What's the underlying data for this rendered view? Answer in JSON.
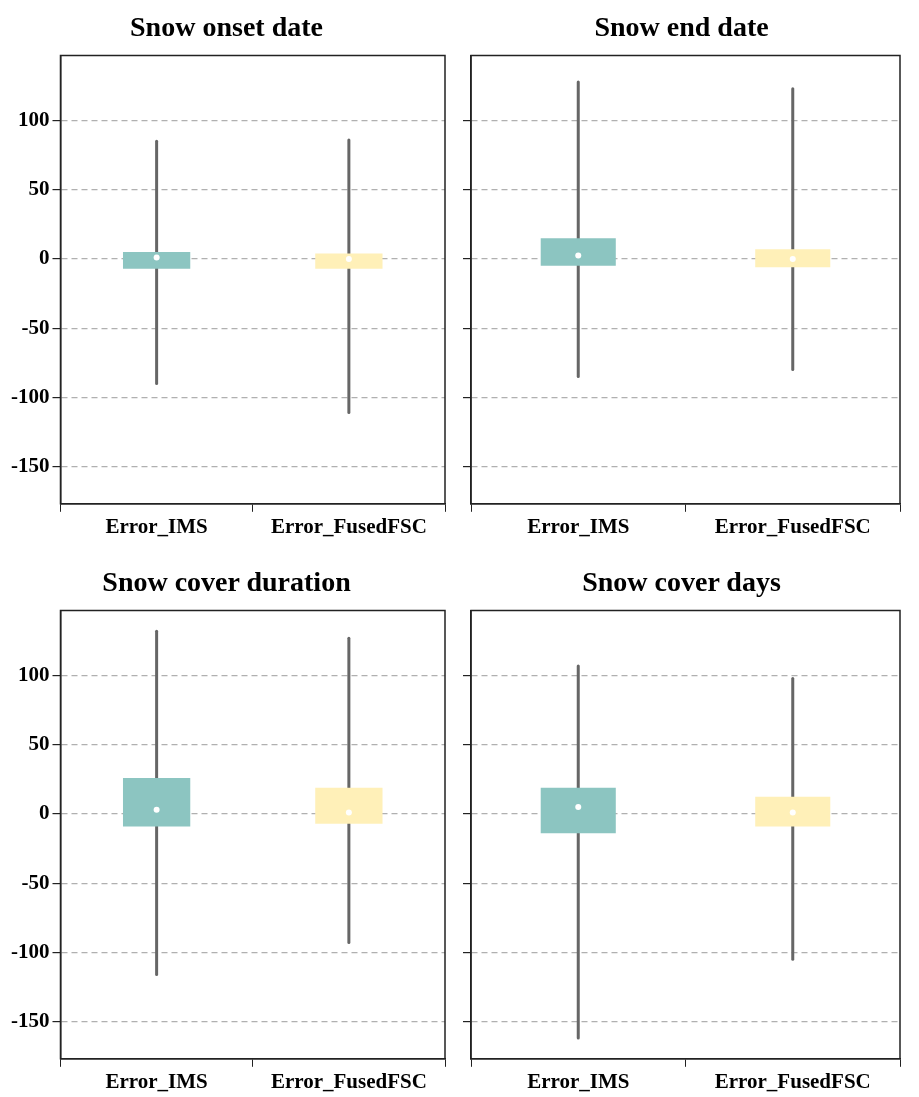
{
  "chart_data": [
    {
      "type": "box",
      "title": "Snow onset date",
      "categories": [
        "Error_IMS",
        "Error_FusedFSC"
      ],
      "colors": [
        "#8cc5c1",
        "#fff0b8"
      ],
      "boxes": [
        {
          "low": -90,
          "q1": -7,
          "median": 1,
          "q3": 5,
          "high": 85
        },
        {
          "low": -111,
          "q1": -7,
          "median": 0,
          "q3": 4,
          "high": 86
        }
      ],
      "ylim": [
        -177,
        147
      ],
      "yticks": [
        -150,
        -100,
        -50,
        0,
        50,
        100
      ],
      "grid": "y"
    },
    {
      "type": "box",
      "title": "Snow end date",
      "categories": [
        "Error_IMS",
        "Error_FusedFSC"
      ],
      "colors": [
        "#8cc5c1",
        "#fff0b8"
      ],
      "boxes": [
        {
          "low": -85,
          "q1": -5,
          "median": 2.5,
          "q3": 15,
          "high": 128
        },
        {
          "low": -80,
          "q1": -6,
          "median": 0,
          "q3": 7,
          "high": 123
        }
      ],
      "ylim": [
        -177,
        147
      ],
      "yticks": [
        -150,
        -100,
        -50,
        0,
        50,
        100
      ],
      "grid": "y",
      "tick_labels": "x"
    },
    {
      "type": "box",
      "title": "Snow cover duration",
      "categories": [
        "Error_IMS",
        "Error_FusedFSC"
      ],
      "colors": [
        "#8cc5c1",
        "#fff0b8"
      ],
      "boxes": [
        {
          "low": -116,
          "q1": -9,
          "median": 3,
          "q3": 26,
          "high": 132
        },
        {
          "low": -93,
          "q1": -7,
          "median": 1,
          "q3": 19,
          "high": 127
        }
      ],
      "ylim": [
        -177,
        147
      ],
      "yticks": [
        -150,
        -100,
        -50,
        0,
        50,
        100
      ],
      "grid": "y"
    },
    {
      "type": "box",
      "title": "Snow cover days",
      "categories": [
        "Error_IMS",
        "Error_FusedFSC"
      ],
      "colors": [
        "#8cc5c1",
        "#fff0b8"
      ],
      "boxes": [
        {
          "low": -162,
          "q1": -14,
          "median": 5,
          "q3": 19,
          "high": 107
        },
        {
          "low": -105,
          "q1": -9,
          "median": 1,
          "q3": 12.5,
          "high": 98
        }
      ],
      "ylim": [
        -177,
        147
      ],
      "yticks": [
        -150,
        -100,
        -50,
        0,
        50,
        100
      ],
      "grid": "y",
      "tick_labels": "x"
    }
  ]
}
